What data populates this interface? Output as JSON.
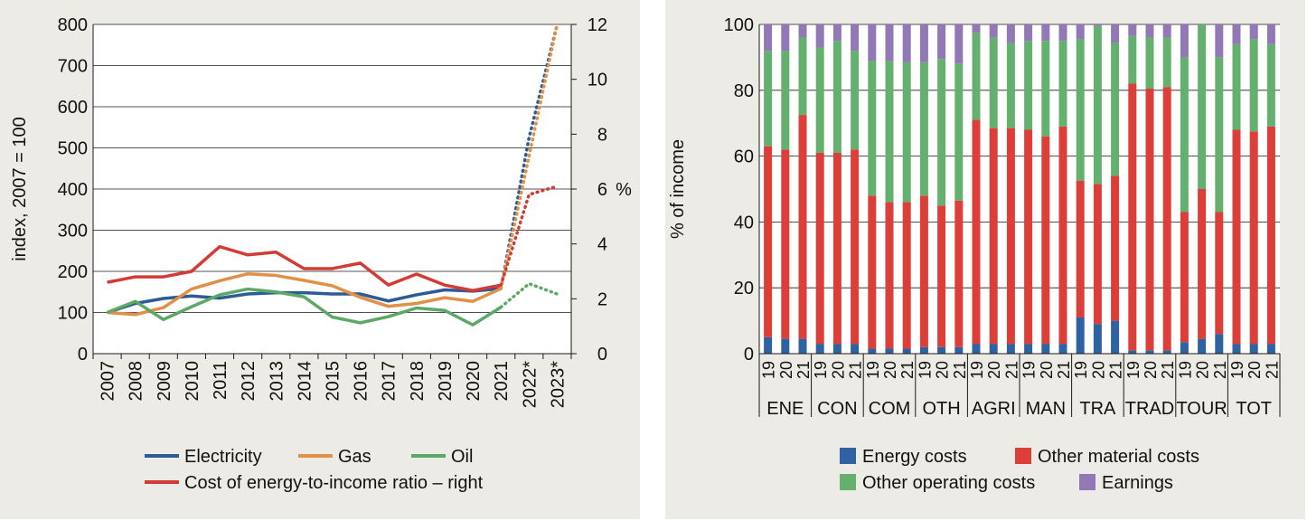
{
  "chart_data": [
    {
      "type": "line",
      "ylabel": "index, 2007 = 100",
      "ylabel_right": "%",
      "ylim": [
        0,
        800
      ],
      "ylim_right": [
        0,
        12
      ],
      "yticks": [
        "0",
        "100",
        "200",
        "300",
        "400",
        "500",
        "600",
        "700",
        "800"
      ],
      "yticks_right": [
        "0",
        "2",
        "4",
        "6",
        "8",
        "10",
        "12"
      ],
      "categories": [
        "2007",
        "2008",
        "2009",
        "2010",
        "2011",
        "2012",
        "2013",
        "2014",
        "2015",
        "2016",
        "2017",
        "2018",
        "2019",
        "2020",
        "2021",
        "2022*",
        "2023*"
      ],
      "grid": true,
      "legend_position": "bottom",
      "series": [
        {
          "name": "Electricity",
          "axis": "left",
          "color": "#2c5b96",
          "values": [
            100,
            122,
            134,
            140,
            135,
            145,
            148,
            148,
            145,
            145,
            128,
            143,
            155,
            152,
            158,
            525,
            800
          ],
          "projected_from": "2021"
        },
        {
          "name": "Gas",
          "axis": "left",
          "color": "#e09047",
          "values": [
            100,
            95,
            112,
            157,
            177,
            194,
            190,
            178,
            165,
            137,
            115,
            122,
            136,
            127,
            158,
            480,
            800
          ],
          "projected_from": "2021"
        },
        {
          "name": "Oil",
          "axis": "left",
          "color": "#5ca866",
          "values": [
            100,
            127,
            83,
            114,
            143,
            157,
            150,
            138,
            89,
            75,
            90,
            111,
            105,
            70,
            113,
            170,
            145
          ],
          "projected_from": "2021"
        },
        {
          "name": "Cost of energy-to-income ratio – right",
          "axis": "right",
          "color": "#d23c35",
          "values": [
            2.6,
            2.8,
            2.8,
            3.0,
            3.9,
            3.6,
            3.7,
            3.1,
            3.1,
            3.3,
            2.5,
            2.9,
            2.5,
            2.3,
            2.5,
            5.8,
            6.1
          ],
          "projected_from": "2021"
        }
      ]
    },
    {
      "type": "bar",
      "stacked": true,
      "ylabel": "% of income",
      "ylim": [
        0,
        100
      ],
      "yticks": [
        "0",
        "20",
        "40",
        "60",
        "80",
        "100"
      ],
      "grid": true,
      "legend_position": "bottom",
      "sectors": [
        "ENE",
        "CON",
        "COM",
        "OTH",
        "AGRI",
        "MAN",
        "TRA",
        "TRAD",
        "TOUR",
        "TOT"
      ],
      "years": [
        "19",
        "20",
        "21"
      ],
      "series": [
        {
          "name": "Energy costs",
          "color": "#2e62a2",
          "values": [
            5,
            4.5,
            4.5,
            3,
            3,
            3,
            1.5,
            1.5,
            1.5,
            2,
            2,
            2,
            3,
            3,
            3,
            3,
            3,
            3,
            11,
            9,
            10,
            1,
            1,
            1,
            3.5,
            4.5,
            6,
            3,
            3,
            3
          ]
        },
        {
          "name": "Other material costs",
          "color": "#dd3e38",
          "values": [
            58,
            57.5,
            68,
            58,
            58,
            59,
            46.5,
            44.5,
            44.5,
            46,
            43,
            44.5,
            68,
            65.5,
            65.5,
            65,
            63,
            66,
            41.5,
            42.5,
            44,
            81,
            79.5,
            80,
            39.5,
            45.5,
            37,
            65,
            64.5,
            66
          ]
        },
        {
          "name": "Other operating costs",
          "color": "#64b06e",
          "values": [
            29,
            30,
            23.5,
            32,
            34,
            30,
            41,
            43,
            42.5,
            40.5,
            44.5,
            41.5,
            26.5,
            27.5,
            26,
            27,
            29,
            26,
            43,
            48,
            40.5,
            14.5,
            15.5,
            15,
            47,
            50,
            47,
            26,
            28,
            25
          ]
        },
        {
          "name": "Earnings",
          "color": "#9279b5",
          "values": [
            8,
            8,
            4,
            7,
            5,
            8,
            11,
            11,
            11.5,
            11.5,
            10.5,
            12,
            2.5,
            4,
            5.5,
            5,
            5,
            5,
            4.5,
            0.5,
            5.5,
            3.5,
            4,
            4,
            10,
            0,
            10,
            6,
            4.5,
            6
          ]
        }
      ]
    }
  ]
}
